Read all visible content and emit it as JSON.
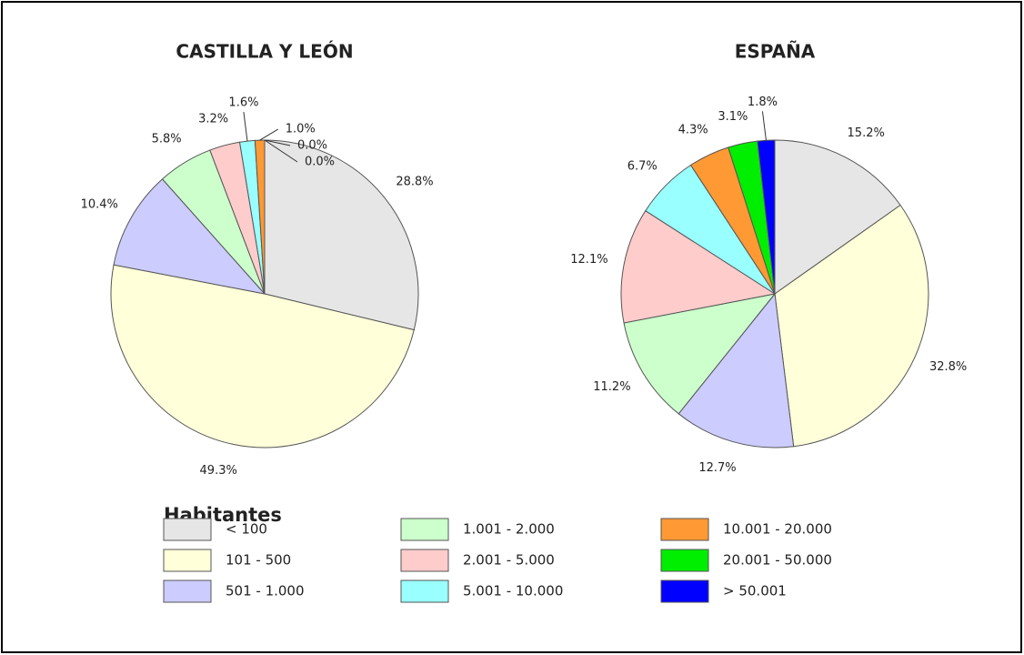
{
  "chart_data": [
    {
      "type": "pie",
      "title": "CASTILLA Y LEÓN",
      "categories": [
        "< 100",
        "101 - 500",
        "501 - 1.000",
        "1.001 - 2.000",
        "2.001 - 5.000",
        "5.001 - 10.000",
        "10.001 - 20.000",
        "20.001 - 50.000",
        "> 50.001"
      ],
      "values": [
        28.8,
        49.3,
        10.4,
        5.8,
        3.2,
        1.6,
        1.0,
        0.0,
        0.0
      ],
      "value_labels": [
        "28.8%",
        "49.3%",
        "10.4%",
        "5.8%",
        "3.2%",
        "1.6%",
        "1.0%",
        "0.0%",
        "0.0%"
      ],
      "colors": [
        "#e6e6e6",
        "#ffffd9",
        "#ccccff",
        "#ccffcc",
        "#ffcccc",
        "#99ffff",
        "#ff9933",
        "#00ee00",
        "#0000ff"
      ]
    },
    {
      "type": "pie",
      "title": "ESPAÑA",
      "categories": [
        "< 100",
        "101 - 500",
        "501 - 1.000",
        "1.001 - 2.000",
        "2.001 - 5.000",
        "5.001 - 10.000",
        "10.001 - 20.000",
        "20.001 - 50.000",
        "> 50.001"
      ],
      "values": [
        15.2,
        32.8,
        12.7,
        11.2,
        12.1,
        6.7,
        4.3,
        3.1,
        1.8
      ],
      "value_labels": [
        "15.2%",
        "32.8%",
        "12.7%",
        "11.2%",
        "12.1%",
        "6.7%",
        "4.3%",
        "3.1%",
        "1.8%"
      ],
      "colors": [
        "#e6e6e6",
        "#ffffd9",
        "#ccccff",
        "#ccffcc",
        "#ffcccc",
        "#99ffff",
        "#ff9933",
        "#00ee00",
        "#0000ff"
      ]
    }
  ],
  "legend": {
    "title": "Habitantes"
  }
}
